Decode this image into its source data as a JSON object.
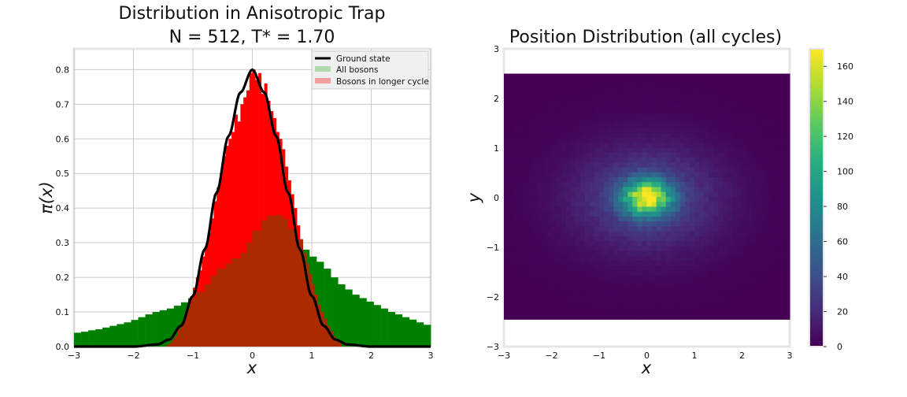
{
  "chart_data": [
    {
      "type": "histogram+line",
      "title_line1": "Distribution in Anisotropic Trap",
      "title_line2": "N = 512, T* = 1.70",
      "xlabel": "x",
      "ylabel": "π(x)",
      "xlim": [
        -3,
        3
      ],
      "ylim": [
        0,
        0.86
      ],
      "xticks": [
        -3,
        -2,
        -1,
        0,
        1,
        2,
        3
      ],
      "xtick_labels": [
        "−3",
        "−2",
        "−1",
        "0",
        "1",
        "2",
        "3"
      ],
      "yticks": [
        0.0,
        0.1,
        0.2,
        0.3,
        0.4,
        0.5,
        0.6,
        0.7,
        0.8
      ],
      "ytick_labels": [
        "0.0",
        "0.1",
        "0.2",
        "0.3",
        "0.4",
        "0.5",
        "0.6",
        "0.7",
        "0.8"
      ],
      "grid": true,
      "legend_position": "top-right",
      "legend": [
        {
          "label": "Ground state",
          "kind": "line",
          "color": "#000000"
        },
        {
          "label": "All bosons",
          "kind": "patch",
          "color": "#b2d8b2"
        },
        {
          "label": "Bosons in longer cycle",
          "kind": "patch",
          "color": "#f4a0a0"
        }
      ],
      "series": [
        {
          "name": "Ground state",
          "type": "line",
          "color": "#000000",
          "x": [
            -3.0,
            -2.0,
            -1.6,
            -1.4,
            -1.2,
            -1.0,
            -0.8,
            -0.6,
            -0.4,
            -0.2,
            0.0,
            0.2,
            0.4,
            0.6,
            0.8,
            1.0,
            1.2,
            1.4,
            1.6,
            2.0,
            3.0
          ],
          "y": [
            0.0,
            0.0,
            0.006,
            0.02,
            0.06,
            0.146,
            0.281,
            0.445,
            0.608,
            0.734,
            0.8,
            0.734,
            0.608,
            0.445,
            0.281,
            0.146,
            0.06,
            0.02,
            0.006,
            0.0,
            0.0
          ]
        },
        {
          "name": "All bosons",
          "type": "histogram",
          "color": "#008000",
          "bin_start": -3.0,
          "bin_width": 0.12,
          "values": [
            0.04,
            0.043,
            0.047,
            0.05,
            0.055,
            0.06,
            0.065,
            0.07,
            0.077,
            0.085,
            0.093,
            0.1,
            0.105,
            0.11,
            0.118,
            0.128,
            0.14,
            0.158,
            0.18,
            0.205,
            0.225,
            0.24,
            0.255,
            0.27,
            0.3,
            0.335,
            0.365,
            0.378,
            0.38,
            0.37,
            0.34,
            0.31,
            0.28,
            0.26,
            0.245,
            0.225,
            0.2,
            0.18,
            0.165,
            0.15,
            0.14,
            0.13,
            0.12,
            0.11,
            0.1,
            0.093,
            0.085,
            0.078,
            0.07,
            0.063
          ]
        },
        {
          "name": "Bosons in longer cycle",
          "type": "histogram",
          "color": "#ff0000",
          "bin_start": -1.5,
          "bin_width": 0.05,
          "values": [
            0.0,
            0.005,
            0.01,
            0.02,
            0.03,
            0.05,
            0.07,
            0.09,
            0.11,
            0.14,
            0.17,
            0.2,
            0.22,
            0.26,
            0.29,
            0.33,
            0.37,
            0.42,
            0.46,
            0.5,
            0.55,
            0.58,
            0.6,
            0.62,
            0.67,
            0.65,
            0.7,
            0.72,
            0.74,
            0.79,
            0.8,
            0.77,
            0.79,
            0.73,
            0.76,
            0.71,
            0.68,
            0.66,
            0.62,
            0.6,
            0.57,
            0.52,
            0.48,
            0.44,
            0.4,
            0.35,
            0.31,
            0.27,
            0.24,
            0.21,
            0.18,
            0.15,
            0.12,
            0.1,
            0.08,
            0.06,
            0.045,
            0.03,
            0.02,
            0.01
          ]
        }
      ]
    },
    {
      "type": "heatmap",
      "title": "Position Distribution (all cycles)",
      "xlabel": "x",
      "ylabel": "y",
      "xlim": [
        -3,
        3
      ],
      "ylim": [
        -3,
        3
      ],
      "data_extent_y": [
        -2.45,
        2.5
      ],
      "xticks": [
        -3,
        -2,
        -1,
        0,
        1,
        2,
        3
      ],
      "xtick_labels": [
        "−3",
        "−2",
        "−1",
        "0",
        "1",
        "2",
        "3"
      ],
      "yticks": [
        -3,
        -2,
        -1,
        0,
        1,
        2,
        3
      ],
      "ytick_labels": [
        "−3",
        "−2",
        "−1",
        "0",
        "1",
        "2",
        "3"
      ],
      "colormap": "viridis",
      "peak": 170,
      "center": [
        0,
        0
      ],
      "core_sigma": [
        0.35,
        0.25
      ],
      "halo_sigma": [
        1.1,
        0.75
      ],
      "colorbar": {
        "min": 0,
        "max": 170,
        "ticks": [
          0,
          20,
          40,
          60,
          80,
          100,
          120,
          140,
          160
        ],
        "tick_labels": [
          "0",
          "20",
          "40",
          "60",
          "80",
          "100",
          "120",
          "140",
          "160"
        ]
      }
    }
  ]
}
